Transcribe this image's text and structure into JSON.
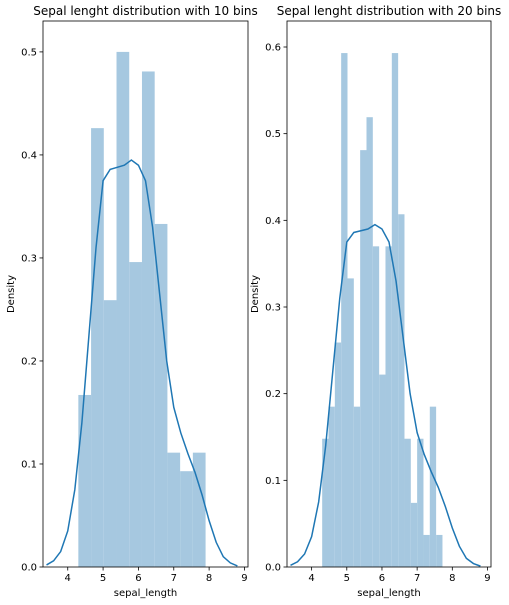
{
  "chart_data": [
    {
      "type": "bar",
      "title": "Sepal lenght distribution with 10 bins",
      "xlabel": "sepal_length",
      "ylabel": "Density",
      "xlim": [
        3.3,
        9.1
      ],
      "ylim": [
        0,
        0.53
      ],
      "xticks": [
        "4",
        "5",
        "6",
        "7",
        "8",
        "9"
      ],
      "yticks": [
        "0.0",
        "0.1",
        "0.2",
        "0.3",
        "0.4",
        "0.5"
      ],
      "bin_edges": [
        4.3,
        4.66,
        5.02,
        5.38,
        5.74,
        6.1,
        6.46,
        6.82,
        7.18,
        7.54,
        7.9
      ],
      "values": [
        0.167,
        0.426,
        0.259,
        0.5,
        0.296,
        0.481,
        0.333,
        0.111,
        0.093,
        0.111
      ],
      "kde": {
        "x": [
          3.4,
          3.6,
          3.8,
          4.0,
          4.2,
          4.4,
          4.6,
          4.8,
          5.0,
          5.2,
          5.4,
          5.6,
          5.8,
          6.0,
          6.2,
          6.4,
          6.6,
          6.8,
          7.0,
          7.2,
          7.4,
          7.6,
          7.8,
          8.0,
          8.2,
          8.4,
          8.6,
          8.8
        ],
        "y": [
          0.002,
          0.006,
          0.015,
          0.035,
          0.075,
          0.14,
          0.225,
          0.31,
          0.375,
          0.386,
          0.388,
          0.39,
          0.395,
          0.39,
          0.375,
          0.33,
          0.265,
          0.2,
          0.155,
          0.13,
          0.11,
          0.092,
          0.07,
          0.045,
          0.024,
          0.01,
          0.004,
          0.001
        ]
      },
      "grid": false
    },
    {
      "type": "bar",
      "title": "Sepal lenght distribution with 20 bins",
      "xlabel": "sepal_length",
      "ylabel": "Density",
      "xlim": [
        3.3,
        9.1
      ],
      "ylim": [
        0,
        0.63
      ],
      "xticks": [
        "4",
        "5",
        "6",
        "7",
        "8",
        "9"
      ],
      "yticks": [
        "0.0",
        "0.1",
        "0.2",
        "0.3",
        "0.4",
        "0.5",
        "0.6"
      ],
      "bin_edges": [
        4.3,
        4.48,
        4.66,
        4.84,
        5.02,
        5.2,
        5.38,
        5.56,
        5.74,
        5.92,
        6.1,
        6.28,
        6.46,
        6.64,
        6.82,
        7.0,
        7.18,
        7.36,
        7.54,
        7.72,
        7.9
      ],
      "values": [
        0.148,
        0.185,
        0.259,
        0.593,
        0.333,
        0.185,
        0.481,
        0.519,
        0.37,
        0.222,
        0.37,
        0.593,
        0.407,
        0.148,
        0.074,
        0.148,
        0.037,
        0.185,
        0.037,
        0.0
      ],
      "kde": {
        "x": [
          3.4,
          3.6,
          3.8,
          4.0,
          4.2,
          4.4,
          4.6,
          4.8,
          5.0,
          5.2,
          5.4,
          5.6,
          5.8,
          6.0,
          6.2,
          6.4,
          6.6,
          6.8,
          7.0,
          7.2,
          7.4,
          7.6,
          7.8,
          8.0,
          8.2,
          8.4,
          8.6,
          8.8
        ],
        "y": [
          0.002,
          0.006,
          0.015,
          0.035,
          0.075,
          0.14,
          0.225,
          0.31,
          0.375,
          0.386,
          0.388,
          0.39,
          0.395,
          0.39,
          0.375,
          0.33,
          0.265,
          0.2,
          0.155,
          0.13,
          0.11,
          0.092,
          0.07,
          0.045,
          0.024,
          0.01,
          0.004,
          0.001
        ]
      },
      "grid": false
    }
  ],
  "colors": {
    "bar": "#a6c8e0",
    "kde": "#1f77b4",
    "axes": "#000000"
  }
}
